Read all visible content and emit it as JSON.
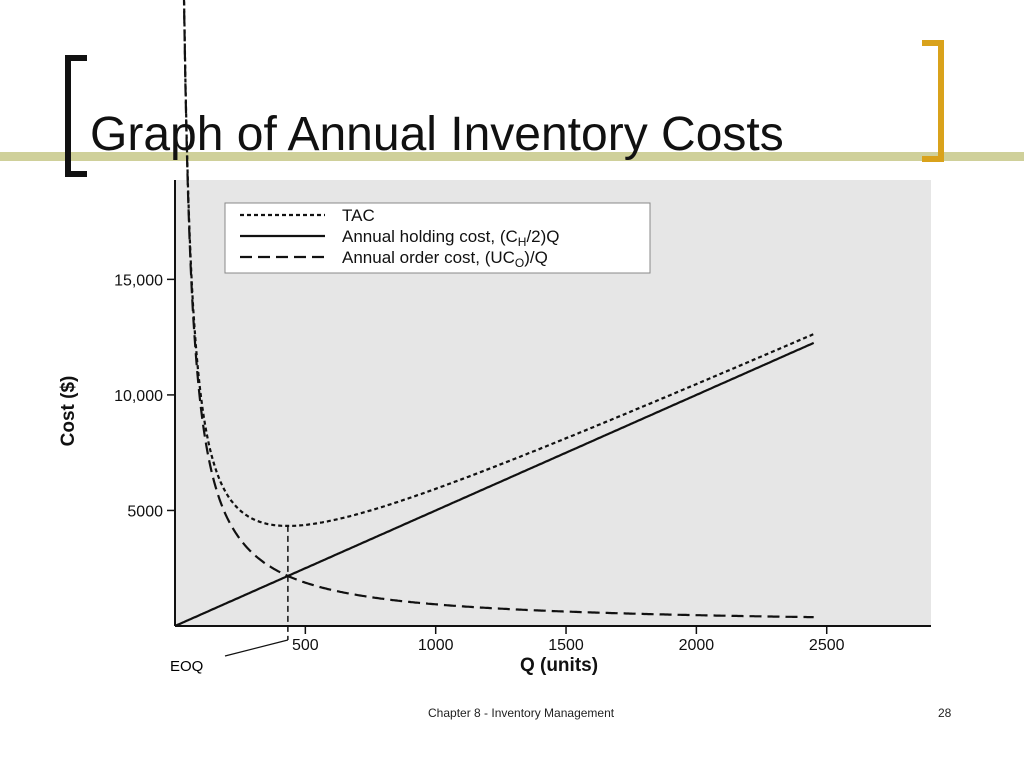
{
  "slide": {
    "title": "Graph of Annual Inventory Costs",
    "footer": "Chapter 8 - Inventory Management",
    "page_number": "28"
  },
  "colors": {
    "accent_bar": "#CFD09A",
    "bracket_left": "#111111",
    "bracket_right": "#D9A21B",
    "plot_background": "#E6E6E6",
    "line": "#111111"
  },
  "chart_data": {
    "type": "line",
    "title": "",
    "xlabel": "Q (units)",
    "ylabel": "Cost ($)",
    "xlim": [
      0,
      2900
    ],
    "ylim": [
      0,
      19300
    ],
    "x_ticks": [
      500,
      1000,
      1500,
      2000,
      2500
    ],
    "x_tick_labels": [
      "500",
      "1000",
      "1500",
      "2000",
      "2500"
    ],
    "y_ticks": [
      5000,
      10000,
      15000
    ],
    "y_tick_labels": [
      "5000",
      "10,000",
      "15,000"
    ],
    "grid": false,
    "legend_position": "top-left",
    "annotation": {
      "label": "EOQ",
      "x": 433
    },
    "holding_rate": 5,
    "order_cost_numerator": 937500,
    "x_min": 25,
    "x_max": 2450,
    "series": [
      {
        "name": "TAC",
        "style": "dotted",
        "label": "TAC"
      },
      {
        "name": "Annual holding cost",
        "style": "solid",
        "label": "Annual holding cost, (C",
        "sub": "H",
        "tail": "/2)Q"
      },
      {
        "name": "Annual order cost",
        "style": "dashed",
        "label": "Annual order cost, (UC",
        "sub": "O",
        "tail": ")/Q"
      }
    ]
  }
}
